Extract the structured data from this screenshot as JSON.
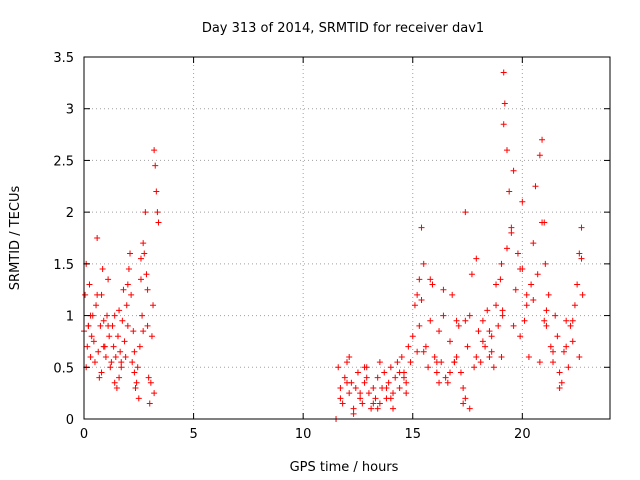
{
  "chart_data": {
    "type": "scatter",
    "title": "Day 313 of 2014, SRMTID for receiver dav1",
    "xlabel": "GPS time / hours",
    "ylabel": "SRMTID / TECUs",
    "xlim": [
      0,
      24
    ],
    "ylim": [
      0,
      3.5
    ],
    "xticks": [
      0,
      5,
      10,
      15,
      20
    ],
    "yticks": [
      0,
      0.5,
      1,
      1.5,
      2,
      2.5,
      3,
      3.5
    ],
    "xtick_labels": [
      "0",
      "5",
      "10",
      "15",
      "20"
    ],
    "ytick_labels": [
      "0",
      "0.5",
      "1",
      "1.5",
      "2",
      "2.5",
      "3",
      "3.5"
    ],
    "grid": true,
    "marker": "+",
    "color": "#ff0000",
    "series": [
      {
        "name": "dav1",
        "x": [
          0.0,
          0.05,
          0.1,
          0.15,
          0.2,
          0.25,
          0.3,
          0.35,
          0.4,
          0.45,
          0.5,
          0.55,
          0.6,
          0.65,
          0.7,
          0.75,
          0.8,
          0.85,
          0.9,
          0.95,
          1.0,
          1.05,
          1.1,
          1.15,
          1.2,
          1.25,
          1.3,
          1.35,
          1.4,
          1.45,
          1.5,
          1.55,
          1.6,
          1.65,
          1.7,
          1.75,
          1.8,
          1.85,
          1.9,
          1.95,
          2.0,
          2.05,
          2.1,
          2.15,
          2.2,
          2.25,
          2.3,
          2.35,
          2.4,
          2.45,
          2.5,
          2.55,
          2.6,
          2.65,
          2.7,
          2.75,
          2.8,
          2.85,
          2.9,
          2.95,
          3.0,
          3.05,
          3.1,
          3.15,
          3.2,
          3.25,
          3.3,
          3.35,
          3.4,
          0.1,
          0.3,
          0.6,
          0.8,
          1.1,
          1.4,
          1.7,
          2.0,
          2.3,
          2.6,
          2.9,
          0.2,
          0.9,
          1.6,
          2.7,
          3.2,
          11.5,
          11.6,
          11.7,
          11.8,
          11.9,
          12.0,
          12.1,
          12.2,
          12.3,
          12.4,
          12.5,
          12.6,
          12.7,
          12.8,
          12.9,
          13.0,
          13.1,
          13.2,
          13.3,
          13.4,
          13.5,
          13.6,
          13.7,
          13.8,
          13.9,
          14.0,
          14.1,
          14.2,
          14.3,
          14.4,
          14.5,
          14.6,
          14.7,
          14.8,
          14.9,
          11.7,
          12.0,
          12.3,
          12.6,
          12.9,
          13.2,
          13.5,
          13.8,
          14.1,
          14.4,
          14.7,
          12.1,
          12.8,
          13.4,
          14.0,
          14.6,
          15.0,
          15.1,
          15.2,
          15.3,
          15.4,
          15.5,
          15.6,
          15.7,
          15.8,
          15.9,
          16.0,
          16.1,
          16.2,
          16.3,
          16.4,
          16.5,
          16.6,
          16.7,
          16.8,
          16.9,
          17.0,
          17.1,
          17.2,
          17.3,
          17.4,
          17.5,
          17.6,
          17.7,
          17.8,
          17.9,
          18.0,
          18.1,
          18.2,
          18.3,
          18.4,
          18.5,
          18.6,
          18.7,
          18.8,
          18.9,
          15.2,
          15.5,
          15.8,
          16.1,
          16.4,
          16.7,
          17.0,
          17.3,
          17.6,
          17.9,
          18.2,
          18.5,
          18.8,
          15.4,
          16.2,
          17.4,
          18.6,
          19.0,
          19.05,
          19.1,
          19.15,
          19.2,
          19.3,
          19.4,
          19.5,
          19.6,
          19.7,
          19.8,
          19.9,
          20.0,
          20.1,
          20.2,
          20.3,
          20.4,
          20.5,
          20.6,
          20.7,
          20.8,
          20.9,
          21.0,
          21.05,
          21.1,
          21.2,
          21.3,
          21.4,
          21.5,
          21.6,
          21.7,
          21.8,
          21.9,
          22.0,
          22.1,
          22.2,
          22.3,
          22.4,
          22.5,
          22.6,
          22.7,
          22.75,
          19.1,
          19.3,
          19.6,
          19.9,
          20.2,
          20.5,
          20.8,
          21.1,
          21.4,
          21.7,
          22.0,
          22.3,
          22.6,
          19.05,
          19.15,
          19.5,
          20.0,
          20.9,
          21.0,
          22.7,
          17.4,
          15.3,
          16.9
        ],
        "y": [
          0.85,
          1.2,
          0.5,
          0.7,
          0.9,
          1.3,
          0.6,
          0.8,
          1.0,
          0.75,
          0.55,
          1.1,
          1.75,
          0.65,
          0.4,
          0.9,
          1.2,
          1.45,
          0.95,
          0.7,
          0.6,
          1.0,
          1.35,
          0.8,
          0.5,
          0.55,
          0.9,
          0.7,
          0.35,
          0.6,
          0.3,
          0.8,
          1.05,
          0.65,
          0.5,
          0.95,
          1.25,
          0.75,
          0.6,
          1.1,
          0.9,
          1.45,
          1.6,
          1.2,
          0.55,
          0.85,
          0.45,
          0.3,
          0.35,
          0.5,
          0.2,
          0.7,
          1.35,
          1.0,
          0.85,
          1.6,
          2.0,
          1.4,
          0.9,
          0.4,
          0.15,
          0.35,
          0.8,
          1.1,
          2.6,
          2.45,
          2.2,
          2.0,
          1.9,
          1.5,
          1.0,
          1.2,
          0.45,
          0.9,
          1.0,
          0.55,
          1.3,
          0.65,
          1.55,
          1.25,
          0.9,
          0.7,
          0.4,
          1.7,
          0.25,
          0.0,
          0.5,
          0.3,
          0.15,
          0.4,
          0.55,
          0.25,
          0.35,
          0.1,
          0.3,
          0.45,
          0.2,
          0.15,
          0.35,
          0.5,
          0.25,
          0.1,
          0.3,
          0.2,
          0.4,
          0.15,
          0.3,
          0.45,
          0.2,
          0.35,
          0.5,
          0.25,
          0.4,
          0.55,
          0.3,
          0.6,
          0.45,
          0.35,
          0.7,
          0.55,
          0.2,
          0.35,
          0.05,
          0.25,
          0.4,
          0.15,
          0.55,
          0.3,
          0.1,
          0.45,
          0.25,
          0.6,
          0.5,
          0.1,
          0.2,
          0.4,
          0.8,
          1.1,
          0.65,
          0.9,
          1.85,
          1.5,
          0.7,
          0.5,
          0.95,
          1.3,
          0.6,
          0.45,
          0.85,
          0.55,
          1.0,
          0.4,
          0.35,
          0.75,
          1.2,
          0.55,
          0.6,
          0.9,
          0.45,
          0.3,
          0.2,
          0.7,
          1.0,
          1.4,
          0.5,
          0.6,
          0.85,
          0.55,
          0.95,
          0.7,
          1.05,
          0.6,
          0.8,
          0.5,
          1.1,
          0.9,
          1.2,
          0.65,
          1.35,
          0.55,
          1.25,
          0.45,
          0.95,
          0.15,
          0.1,
          1.55,
          0.75,
          0.85,
          1.3,
          1.15,
          0.35,
          2.0,
          0.65,
          1.35,
          1.5,
          1.05,
          3.35,
          3.05,
          2.6,
          2.2,
          1.8,
          2.4,
          1.25,
          1.6,
          0.8,
          1.45,
          0.95,
          1.1,
          0.6,
          1.3,
          1.7,
          2.25,
          1.4,
          2.55,
          2.7,
          1.9,
          1.5,
          0.9,
          1.2,
          0.7,
          0.55,
          1.0,
          0.8,
          0.45,
          0.35,
          0.65,
          0.95,
          0.5,
          0.9,
          0.75,
          1.1,
          1.3,
          1.6,
          1.85,
          1.2,
          1.0,
          1.65,
          0.9,
          1.45,
          1.2,
          1.15,
          0.55,
          1.05,
          0.65,
          0.3,
          0.7,
          0.95,
          0.6,
          0.6,
          2.85,
          1.85,
          2.1,
          1.9,
          0.95,
          1.55,
          0.95,
          1.35,
          0.55
        ]
      }
    ]
  }
}
